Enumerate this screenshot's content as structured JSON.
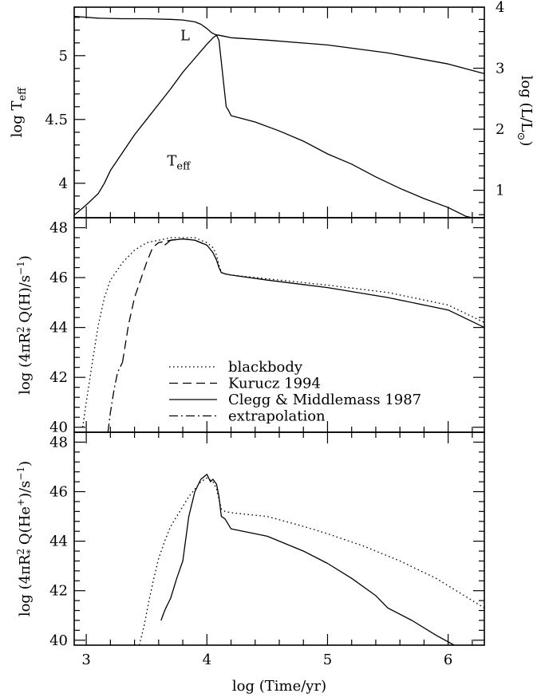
{
  "chart_data": [
    {
      "type": "line",
      "panel": "top",
      "ylabel_left": "log T",
      "ylabel_left_sub": "eff",
      "ylabel_right": "log (L/L",
      "ylabel_right_sub": "⊙",
      "ylabel_right_end": ")",
      "xlim": [
        2.9,
        6.3
      ],
      "ylim": [
        3.73,
        5.38
      ],
      "ylim_right": [
        0.55,
        4.0
      ],
      "yticks": [
        4,
        4.5,
        5
      ],
      "ytick_labels": [
        "4",
        "4.5",
        "5"
      ],
      "yticks_right": [
        1,
        2,
        3,
        4
      ],
      "ytick_labels_right": [
        "1",
        "2",
        "3",
        "4"
      ],
      "annotations": [
        {
          "text": "L",
          "x": 3.78,
          "y": 5.12
        },
        {
          "text": "T",
          "sub": "eff",
          "x": 3.67,
          "y": 4.14
        }
      ],
      "series": [
        {
          "axis": "right",
          "style": "solid",
          "points": [
            [
              2.9,
              3.85
            ],
            [
              3.1,
              3.82
            ],
            [
              3.3,
              3.81
            ],
            [
              3.5,
              3.81
            ],
            [
              3.7,
              3.8
            ],
            [
              3.8,
              3.79
            ],
            [
              3.9,
              3.76
            ],
            [
              3.95,
              3.72
            ],
            [
              4.0,
              3.65
            ],
            [
              4.04,
              3.58
            ],
            [
              4.07,
              3.55
            ],
            [
              4.1,
              3.54
            ],
            [
              4.15,
              3.52
            ],
            [
              4.2,
              3.5
            ],
            [
              4.5,
              3.46
            ],
            [
              5.0,
              3.38
            ],
            [
              5.5,
              3.25
            ],
            [
              6.0,
              3.07
            ],
            [
              6.3,
              2.91
            ]
          ]
        },
        {
          "axis": "left",
          "style": "solid",
          "points": [
            [
              2.9,
              3.75
            ],
            [
              3.0,
              3.83
            ],
            [
              3.1,
              3.92
            ],
            [
              3.15,
              4.0
            ],
            [
              3.2,
              4.1
            ],
            [
              3.3,
              4.24
            ],
            [
              3.4,
              4.38
            ],
            [
              3.5,
              4.5
            ],
            [
              3.6,
              4.62
            ],
            [
              3.7,
              4.74
            ],
            [
              3.8,
              4.87
            ],
            [
              3.9,
              4.98
            ],
            [
              4.0,
              5.09
            ],
            [
              4.05,
              5.14
            ],
            [
              4.08,
              5.16
            ],
            [
              4.1,
              5.12
            ],
            [
              4.12,
              4.95
            ],
            [
              4.14,
              4.77
            ],
            [
              4.16,
              4.6
            ],
            [
              4.18,
              4.57
            ],
            [
              4.2,
              4.53
            ],
            [
              4.4,
              4.48
            ],
            [
              4.6,
              4.41
            ],
            [
              4.8,
              4.33
            ],
            [
              5.0,
              4.23
            ],
            [
              5.2,
              4.15
            ],
            [
              5.4,
              4.05
            ],
            [
              5.6,
              3.96
            ],
            [
              5.8,
              3.88
            ],
            [
              6.0,
              3.81
            ],
            [
              6.15,
              3.74
            ],
            [
              6.2,
              3.73
            ]
          ]
        }
      ]
    },
    {
      "type": "line",
      "panel": "middle",
      "ylabel": "log (4πR",
      "ylabel_sup": "2",
      "ylabel_sub": "*",
      "ylabel_end": " Q(H)/s",
      "ylabel_unit_sup": "−1",
      "ylabel_close": ")",
      "xlim": [
        2.9,
        6.3
      ],
      "ylim": [
        39.8,
        48.4
      ],
      "yticks": [
        40,
        42,
        44,
        46,
        48
      ],
      "ytick_labels": [
        "40",
        "42",
        "44",
        "46",
        "48"
      ],
      "legend": [
        {
          "label": "blackbody",
          "style": "dotted"
        },
        {
          "label": "Kurucz 1994",
          "style": "dashed"
        },
        {
          "label": "Clegg & Middlemass 1987",
          "style": "solid"
        },
        {
          "label": "extrapolation",
          "style": "dashdot"
        }
      ],
      "series": [
        {
          "name": "blackbody",
          "style": "dotted",
          "points": [
            [
              2.97,
              40.0
            ],
            [
              3.0,
              41.0
            ],
            [
              3.05,
              42.6
            ],
            [
              3.1,
              44.1
            ],
            [
              3.15,
              45.2
            ],
            [
              3.2,
              45.9
            ],
            [
              3.3,
              46.6
            ],
            [
              3.4,
              47.1
            ],
            [
              3.5,
              47.4
            ],
            [
              3.6,
              47.5
            ],
            [
              3.7,
              47.6
            ],
            [
              3.8,
              47.6
            ],
            [
              3.9,
              47.6
            ],
            [
              4.0,
              47.4
            ],
            [
              4.05,
              47.2
            ],
            [
              4.08,
              46.9
            ],
            [
              4.1,
              46.5
            ],
            [
              4.12,
              46.2
            ],
            [
              4.15,
              46.15
            ],
            [
              4.2,
              46.1
            ],
            [
              4.5,
              45.95
            ],
            [
              5.0,
              45.7
            ],
            [
              5.5,
              45.4
            ],
            [
              6.0,
              44.9
            ],
            [
              6.3,
              44.2
            ]
          ]
        },
        {
          "name": "Kurucz 1994",
          "style": "dashed",
          "points": [
            [
              3.3,
              42.6
            ],
            [
              3.35,
              44.1
            ],
            [
              3.4,
              45.2
            ],
            [
              3.45,
              45.9
            ],
            [
              3.5,
              46.6
            ],
            [
              3.55,
              47.2
            ],
            [
              3.6,
              47.4
            ],
            [
              3.7,
              47.5
            ],
            [
              3.8,
              47.55
            ],
            [
              3.9,
              47.5
            ],
            [
              4.0,
              47.3
            ]
          ]
        },
        {
          "name": "Clegg & Middlemass 1987",
          "style": "solid",
          "points": [
            [
              3.65,
              47.3
            ],
            [
              3.7,
              47.5
            ],
            [
              3.8,
              47.55
            ],
            [
              3.9,
              47.5
            ],
            [
              4.0,
              47.3
            ],
            [
              4.05,
              47.0
            ],
            [
              4.08,
              46.7
            ],
            [
              4.1,
              46.4
            ],
            [
              4.12,
              46.2
            ],
            [
              4.15,
              46.15
            ],
            [
              4.2,
              46.1
            ],
            [
              4.5,
              45.9
            ],
            [
              5.0,
              45.6
            ],
            [
              5.5,
              45.2
            ],
            [
              6.0,
              44.7
            ],
            [
              6.3,
              44.0
            ]
          ]
        },
        {
          "name": "extrapolation",
          "style": "dashdot",
          "points": [
            [
              3.18,
              39.8
            ],
            [
              3.2,
              40.6
            ],
            [
              3.23,
              41.5
            ],
            [
              3.26,
              42.2
            ],
            [
              3.3,
              42.6
            ]
          ]
        }
      ]
    },
    {
      "type": "line",
      "panel": "bottom",
      "xlabel": "log (Time/yr)",
      "ylabel": "log (4πR",
      "ylabel_sup": "2",
      "ylabel_sub": "*",
      "ylabel_end": " Q(He",
      "ylabel_ion_sup": "+",
      "ylabel_end2": ")/s",
      "ylabel_unit_sup": "−1",
      "ylabel_close": ")",
      "xlim": [
        2.9,
        6.3
      ],
      "ylim": [
        39.8,
        48.4
      ],
      "yticks": [
        40,
        42,
        44,
        46,
        48
      ],
      "ytick_labels": [
        "40",
        "42",
        "44",
        "46",
        "48"
      ],
      "xticks": [
        3,
        4,
        5,
        6
      ],
      "xtick_labels": [
        "3",
        "4",
        "5",
        "6"
      ],
      "series": [
        {
          "name": "blackbody",
          "style": "dotted",
          "points": [
            [
              3.44,
              39.8
            ],
            [
              3.48,
              40.6
            ],
            [
              3.52,
              41.6
            ],
            [
              3.56,
              42.5
            ],
            [
              3.6,
              43.3
            ],
            [
              3.65,
              44.0
            ],
            [
              3.7,
              44.6
            ],
            [
              3.75,
              45.0
            ],
            [
              3.8,
              45.4
            ],
            [
              3.85,
              45.8
            ],
            [
              3.9,
              46.1
            ],
            [
              3.95,
              46.4
            ],
            [
              4.0,
              46.55
            ],
            [
              4.05,
              46.4
            ],
            [
              4.08,
              46.1
            ],
            [
              4.1,
              45.7
            ],
            [
              4.12,
              45.3
            ],
            [
              4.15,
              45.2
            ],
            [
              4.2,
              45.15
            ],
            [
              4.5,
              45.0
            ],
            [
              4.8,
              44.6
            ],
            [
              5.0,
              44.3
            ],
            [
              5.3,
              43.8
            ],
            [
              5.6,
              43.2
            ],
            [
              5.9,
              42.5
            ],
            [
              6.1,
              41.9
            ],
            [
              6.3,
              41.3
            ]
          ]
        },
        {
          "name": "Clegg & Middlemass 1987",
          "style": "solid",
          "points": [
            [
              3.62,
              40.8
            ],
            [
              3.65,
              41.2
            ],
            [
              3.7,
              41.7
            ],
            [
              3.75,
              42.5
            ],
            [
              3.8,
              43.2
            ],
            [
              3.85,
              45.0
            ],
            [
              3.9,
              46.0
            ],
            [
              3.95,
              46.5
            ],
            [
              4.0,
              46.7
            ],
            [
              4.03,
              46.4
            ],
            [
              4.05,
              46.5
            ],
            [
              4.08,
              46.3
            ],
            [
              4.1,
              45.8
            ],
            [
              4.12,
              45.0
            ],
            [
              4.15,
              44.9
            ],
            [
              4.2,
              44.5
            ],
            [
              4.5,
              44.2
            ],
            [
              4.8,
              43.6
            ],
            [
              5.0,
              43.1
            ],
            [
              5.2,
              42.5
            ],
            [
              5.4,
              41.8
            ],
            [
              5.5,
              41.3
            ],
            [
              5.7,
              40.8
            ],
            [
              5.9,
              40.2
            ],
            [
              6.05,
              39.8
            ]
          ]
        }
      ]
    }
  ]
}
